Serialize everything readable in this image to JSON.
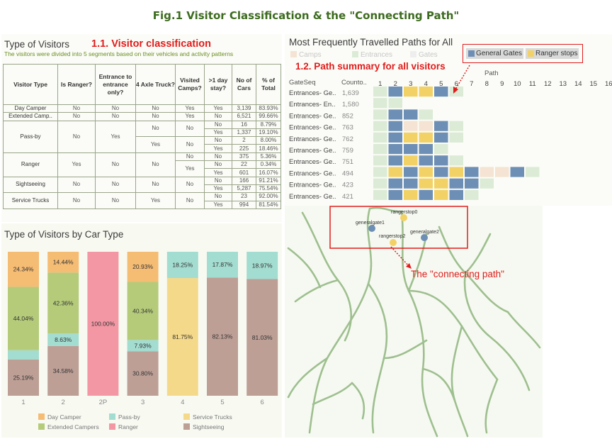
{
  "figure_title": "Fig.1 Visitor Classification & the \"Connecting Path\"",
  "classification_panel": {
    "title": "Type of Visitors",
    "note": "1.1. Visitor classification",
    "subtitle": "The visitors were divided into 5 segments based on their vehicles and activity patterns",
    "headers": [
      "Visitor Type",
      "Is Ranger?",
      "Entrance to entrance only?",
      "4 Axle Truck?",
      "Visited Camps?",
      ">1 day stay?",
      "No of Cars",
      "% of Total"
    ]
  },
  "cartype_panel": {
    "title": "Type of Visitors by Car Type"
  },
  "paths_panel": {
    "title": "Most Frequently Travelled Paths for All",
    "note": "1.2. Path summary for all visitors",
    "legend_faded": [
      "Camps",
      "Entrances",
      "Gates"
    ],
    "legend_highlight": [
      "General Gates",
      "Ranger stops"
    ],
    "col_header_path": "Path",
    "col_header_gateseq": "GateSeq",
    "col_header_count": "Counto..",
    "path_numbers": [
      "1",
      "2",
      "3",
      "4",
      "5",
      "6",
      "7",
      "8",
      "9",
      "10",
      "11",
      "12",
      "13",
      "14",
      "15",
      "16"
    ],
    "rows": [
      {
        "seq": "Entrances- Ge..",
        "count": "1,639"
      },
      {
        "seq": "Entrances- En..",
        "count": "1,580"
      },
      {
        "seq": "Entrances- Ge..",
        "count": "852"
      },
      {
        "seq": "Entrances- Ge..",
        "count": "763"
      },
      {
        "seq": "Entrances- Ge..",
        "count": "762"
      },
      {
        "seq": "Entrances- Ge..",
        "count": "759"
      },
      {
        "seq": "Entrances- Ge..",
        "count": "751"
      },
      {
        "seq": "Entrances- Ge..",
        "count": "494"
      },
      {
        "seq": "Entrances- Ge..",
        "count": "423"
      },
      {
        "seq": "Entrances- Ge..",
        "count": "421"
      }
    ]
  },
  "map_panel": {
    "labels": [
      "rangerstop0",
      "generalgate1",
      "rangerstop2",
      "generalgate2"
    ],
    "note": "The \"connecting path\""
  },
  "colors": {
    "title_green": "#3d6b1f",
    "note_red": "#e01c1c",
    "day_camper": "#f5bc74",
    "extended_campers": "#b5cb7a",
    "pass_by": "#a3dcd0",
    "ranger": "#f397a4",
    "service_trucks": "#f5d98a",
    "sightseeing": "#bd9f96",
    "general_gates": "#6e8fb5",
    "ranger_stops": "#f2d267",
    "entrance_cell": "#dcebd6",
    "camp_cell": "#f5e4d3"
  },
  "chart_data": [
    {
      "type": "table",
      "title": "Type of Visitors",
      "columns": [
        "Visitor Type",
        "Is Ranger?",
        "Entrance to entrance only?",
        "4 Axle Truck?",
        "Visited Camps?",
        ">1 day stay?",
        "No of Cars",
        "% of Total"
      ],
      "rows": [
        [
          "Day Camper",
          "No",
          "No",
          "No",
          "Yes",
          "Yes",
          "3,139",
          "83.93%"
        ],
        [
          "Extended Camp..",
          "No",
          "No",
          "No",
          "Yes",
          "No",
          "6,521",
          "99.66%"
        ],
        [
          "Pass-by",
          "No",
          "Yes",
          "No",
          "No",
          "No",
          "16",
          "8.79%"
        ],
        [
          "",
          "",
          "",
          "",
          "",
          "Yes",
          "1,337",
          "19.10%"
        ],
        [
          "",
          "",
          "",
          "Yes",
          "No",
          "No",
          "2",
          "8.00%"
        ],
        [
          "",
          "",
          "",
          "",
          "",
          "Yes",
          "225",
          "18.46%"
        ],
        [
          "Ranger",
          "Yes",
          "No",
          "No",
          "No",
          "No",
          "375",
          "5.36%"
        ],
        [
          "",
          "",
          "",
          "",
          "Yes",
          "No",
          "22",
          "0.34%"
        ],
        [
          "",
          "",
          "",
          "",
          "",
          "Yes",
          "601",
          "16.07%"
        ],
        [
          "Sightseeing",
          "No",
          "No",
          "No",
          "No",
          "No",
          "166",
          "91.21%"
        ],
        [
          "",
          "",
          "",
          "",
          "",
          "Yes",
          "5,287",
          "75.54%"
        ],
        [
          "Service Trucks",
          "No",
          "No",
          "Yes",
          "No",
          "No",
          "23",
          "92.00%"
        ],
        [
          "",
          "",
          "",
          "",
          "",
          "Yes",
          "994",
          "81.54%"
        ]
      ]
    },
    {
      "type": "bar",
      "stacked": true,
      "title": "Type of Visitors by Car Type",
      "categories": [
        "1",
        "2",
        "2P",
        "3",
        "4",
        "5",
        "6"
      ],
      "ylim": [
        0,
        100
      ],
      "legend_position": "bottom",
      "series": [
        {
          "name": "Sightseeing",
          "values": [
            25.19,
            34.58,
            0,
            30.8,
            0,
            82.13,
            81.03
          ]
        },
        {
          "name": "Pass-by",
          "values": [
            6.43,
            8.63,
            0,
            7.93,
            0,
            17.87,
            18.97
          ]
        },
        {
          "name": "Extended Campers",
          "values": [
            44.04,
            42.36,
            0,
            40.34,
            0,
            0,
            0
          ]
        },
        {
          "name": "Day Camper",
          "values": [
            24.34,
            14.44,
            0,
            20.93,
            0,
            0,
            0
          ]
        },
        {
          "name": "Ranger",
          "values": [
            0,
            0,
            100.0,
            0,
            0,
            0,
            0
          ]
        },
        {
          "name": "Service Trucks",
          "values": [
            0,
            0,
            0,
            0,
            81.75,
            0,
            0
          ]
        },
        {
          "name": "Pass-by (4)",
          "values": [
            0,
            0,
            0,
            0,
            18.25,
            0,
            0
          ]
        }
      ],
      "data_labels": [
        [
          "25.19%",
          "",
          "44.04%",
          "24.34%",
          "",
          "",
          ""
        ],
        [
          "34.58%",
          "8.63%",
          "42.36%",
          "14.44%",
          "",
          "",
          ""
        ],
        [
          "",
          "",
          "",
          "",
          "100.00%",
          "",
          ""
        ],
        [
          "30.80%",
          "7.93%",
          "40.34%",
          "20.93%",
          "",
          "",
          ""
        ],
        [
          "",
          "",
          "",
          "",
          "",
          "81.75%",
          "18.25%"
        ],
        [
          "82.13%",
          "17.87%",
          "",
          "",
          "",
          "",
          ""
        ],
        [
          "81.03%",
          "18.97%",
          "",
          "",
          "",
          "",
          ""
        ]
      ],
      "legend": [
        "Day Camper",
        "Pass-by",
        "Service Trucks",
        "Extended Campers",
        "Ranger",
        "Sightseeing"
      ]
    },
    {
      "type": "heatmap",
      "title": "Most Frequently Travelled Paths for All",
      "x": [
        "1",
        "2",
        "3",
        "4",
        "5",
        "6",
        "7",
        "8",
        "9",
        "10",
        "11",
        "12",
        "13",
        "14",
        "15",
        "16"
      ],
      "cell_codes": {
        "E": "Entrances",
        "G": "General Gates",
        "R": "Ranger stops",
        "C": "Camps"
      },
      "cells": [
        [
          "E",
          "G",
          "R",
          "R",
          "G",
          "E"
        ],
        [
          "E",
          "E"
        ],
        [
          "E",
          "G",
          "G",
          "E"
        ],
        [
          "E",
          "G",
          "C",
          "C",
          "G",
          "E"
        ],
        [
          "E",
          "G",
          "R",
          "R",
          "G",
          "E"
        ],
        [
          "E",
          "G",
          "G",
          "G",
          "E"
        ],
        [
          "E",
          "G",
          "R",
          "G",
          "G",
          "E"
        ],
        [
          "E",
          "R",
          "G",
          "R",
          "G",
          "R",
          "G",
          "C",
          "C",
          "G",
          "E"
        ],
        [
          "E",
          "G",
          "G",
          "R",
          "R",
          "G",
          "G",
          "E"
        ],
        [
          "E",
          "G",
          "R",
          "G",
          "R",
          "G",
          "E"
        ]
      ]
    }
  ]
}
